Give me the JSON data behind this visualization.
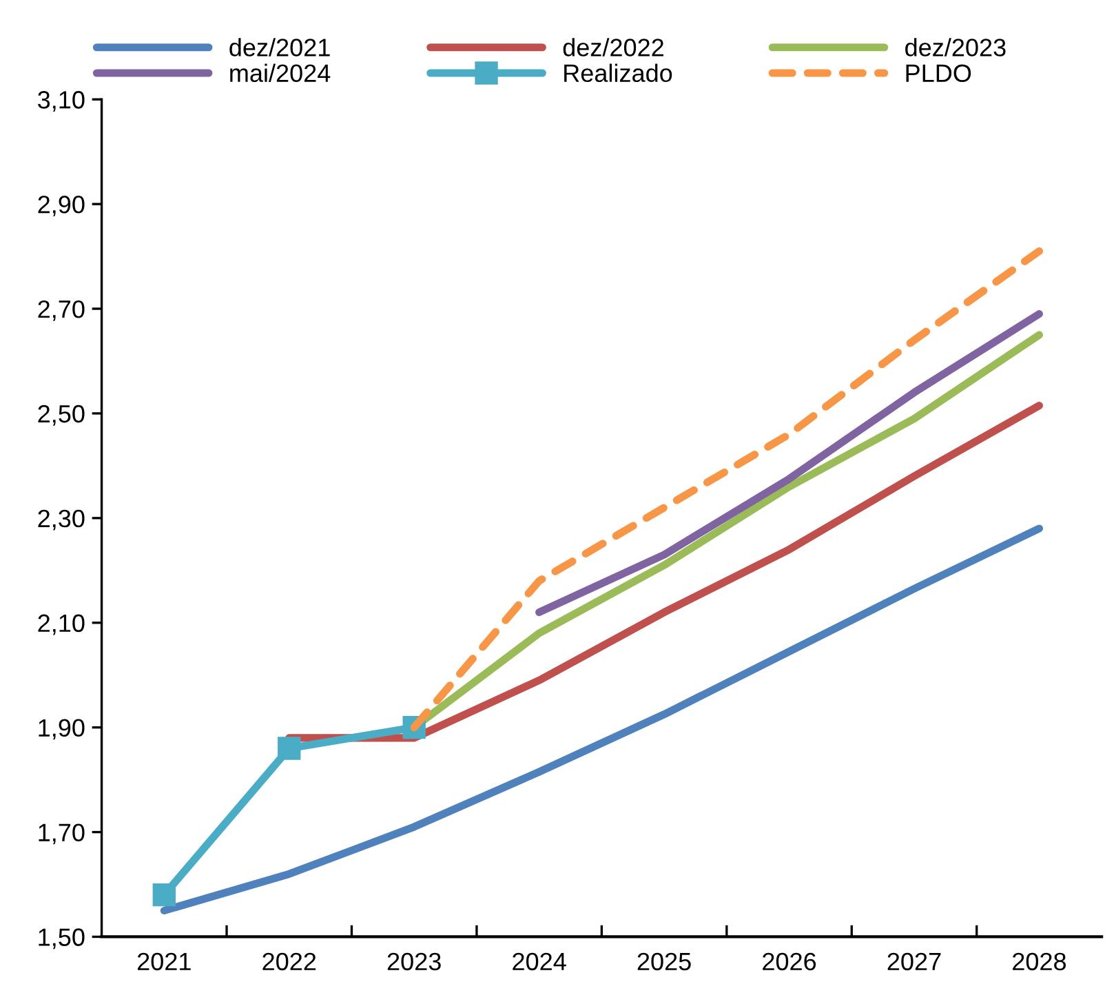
{
  "chart_data": {
    "type": "line",
    "categories": [
      "2021",
      "2022",
      "2023",
      "2024",
      "2025",
      "2026",
      "2027",
      "2028"
    ],
    "ylim": [
      1.5,
      3.1
    ],
    "yticks": [
      {
        "value": 1.5,
        "label": "1,50"
      },
      {
        "value": 1.7,
        "label": "1,70"
      },
      {
        "value": 1.9,
        "label": "1,90"
      },
      {
        "value": 2.1,
        "label": "2,10"
      },
      {
        "value": 2.3,
        "label": "2,30"
      },
      {
        "value": 2.5,
        "label": "2,50"
      },
      {
        "value": 2.7,
        "label": "2,70"
      },
      {
        "value": 2.9,
        "label": "2,90"
      },
      {
        "value": 3.1,
        "label": "3,10"
      }
    ],
    "grid": false,
    "legend": "top",
    "marker": "none",
    "line_style": "solid",
    "series": [
      {
        "name": "dez/2021",
        "color": "#4f81bd",
        "values": [
          1.55,
          1.62,
          1.71,
          1.815,
          1.925,
          2.045,
          2.165,
          2.28
        ]
      },
      {
        "name": "dez/2022",
        "color": "#c0504d",
        "values": [
          null,
          1.88,
          1.88,
          1.99,
          2.12,
          2.24,
          2.38,
          2.515
        ]
      },
      {
        "name": "dez/2023",
        "color": "#9bbb59",
        "values": [
          null,
          null,
          1.9,
          2.08,
          2.21,
          2.36,
          2.49,
          2.65
        ]
      },
      {
        "name": "mai/2024",
        "color": "#8064a2",
        "values": [
          null,
          null,
          null,
          2.12,
          2.23,
          2.375,
          2.54,
          2.69
        ]
      },
      {
        "name": "Realizado",
        "color": "#4bacc6",
        "marker": "square",
        "values": [
          1.58,
          1.86,
          1.9,
          null,
          null,
          null,
          null,
          null
        ]
      },
      {
        "name": "PLDO",
        "color": "#f79646",
        "line_style": "dashed",
        "values": [
          null,
          null,
          1.9,
          2.18,
          2.32,
          2.46,
          2.64,
          2.81
        ]
      }
    ]
  }
}
